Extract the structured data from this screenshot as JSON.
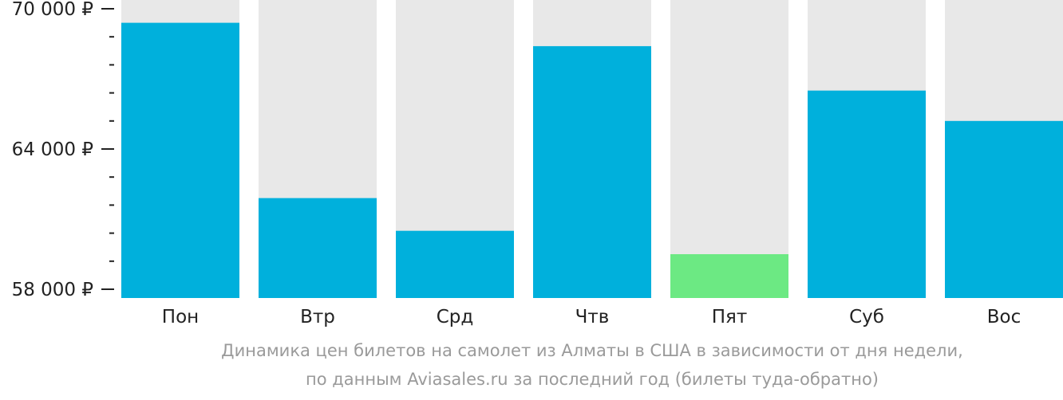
{
  "chart_data": {
    "type": "bar",
    "categories": [
      "Пон",
      "Втр",
      "Срд",
      "Чтв",
      "Пят",
      "Суб",
      "Вос"
    ],
    "values": [
      69400,
      61900,
      60500,
      68400,
      59500,
      66500,
      65200
    ],
    "ylim": [
      58000,
      70000
    ],
    "yticks": [
      {
        "value": 58000,
        "label": "58 000 ₽"
      },
      {
        "value": 64000,
        "label": "64 000 ₽"
      },
      {
        "value": 70000,
        "label": "70 000 ₽"
      }
    ],
    "minor_tick_step": 1200,
    "highlight_index": 4,
    "colors": {
      "bar": "#00b0dc",
      "highlight": "#6ce983",
      "background_column": "#e8e8e8",
      "axis": "#222222",
      "tick_label": "#222222",
      "caption": "#9a9a9a"
    }
  },
  "caption": {
    "line1": "Динамика цен билетов на самолет из Алматы в США в зависимости от дня недели,",
    "line2": "по данным Aviasales.ru за последний год (билеты туда-обратно)"
  }
}
